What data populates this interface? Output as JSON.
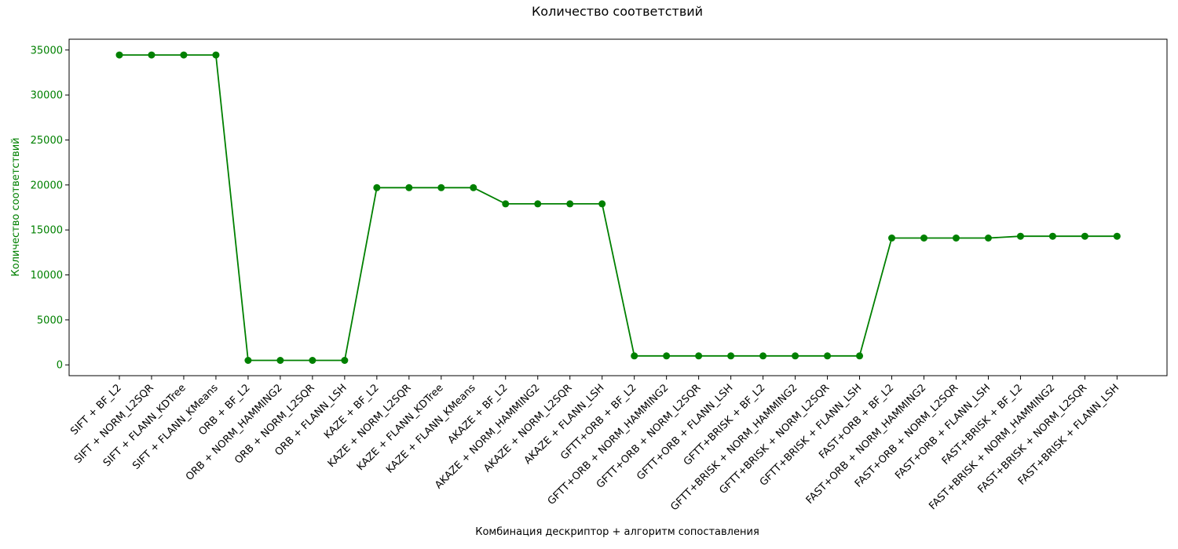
{
  "chart_data": {
    "type": "line",
    "title": "Количество соответствий",
    "xlabel": "Комбинация дескриптор + алгоритм сопоставления",
    "ylabel": "Количество соответствий",
    "ylim": [
      -1200,
      36200
    ],
    "yticks": [
      0,
      5000,
      10000,
      15000,
      20000,
      25000,
      30000,
      35000
    ],
    "grid": false,
    "colors": {
      "series": "#008000",
      "axis_text": "#008000",
      "text": "#000000"
    },
    "categories": [
      "SIFT + BF_L2",
      "SIFT + NORM_L2SQR",
      "SIFT + FLANN_KDTree",
      "SIFT + FLANN_KMeans",
      "ORB + BF_L2",
      "ORB + NORM_HAMMING2",
      "ORB + NORM_L2SQR",
      "ORB + FLANN_LSH",
      "KAZE + BF_L2",
      "KAZE + NORM_L2SQR",
      "KAZE + FLANN_KDTree",
      "KAZE + FLANN_KMeans",
      "AKAZE + BF_L2",
      "AKAZE + NORM_HAMMING2",
      "AKAZE + NORM_L2SQR",
      "AKAZE + FLANN_LSH",
      "GFTT+ORB + BF_L2",
      "GFTT+ORB + NORM_HAMMING2",
      "GFTT+ORB + NORM_L2SQR",
      "GFTT+ORB + FLANN_LSH",
      "GFTT+BRISK + BF_L2",
      "GFTT+BRISK + NORM_HAMMING2",
      "GFTT+BRISK + NORM_L2SQR",
      "GFTT+BRISK + FLANN_LSH",
      "FAST+ORB + BF_L2",
      "FAST+ORB + NORM_HAMMING2",
      "FAST+ORB + NORM_L2SQR",
      "FAST+ORB + FLANN_LSH",
      "FAST+BRISK + BF_L2",
      "FAST+BRISK + NORM_HAMMING2",
      "FAST+BRISK + NORM_L2SQR",
      "FAST+BRISK + FLANN_LSH"
    ],
    "series": [
      {
        "values": [
          34450,
          34450,
          34450,
          34450,
          500,
          500,
          500,
          500,
          19700,
          19700,
          19700,
          19700,
          17900,
          17900,
          17900,
          17900,
          1000,
          1000,
          1000,
          1000,
          1000,
          1000,
          1000,
          1000,
          14100,
          14100,
          14100,
          14100,
          14300,
          14300,
          14300,
          14300
        ]
      }
    ]
  }
}
